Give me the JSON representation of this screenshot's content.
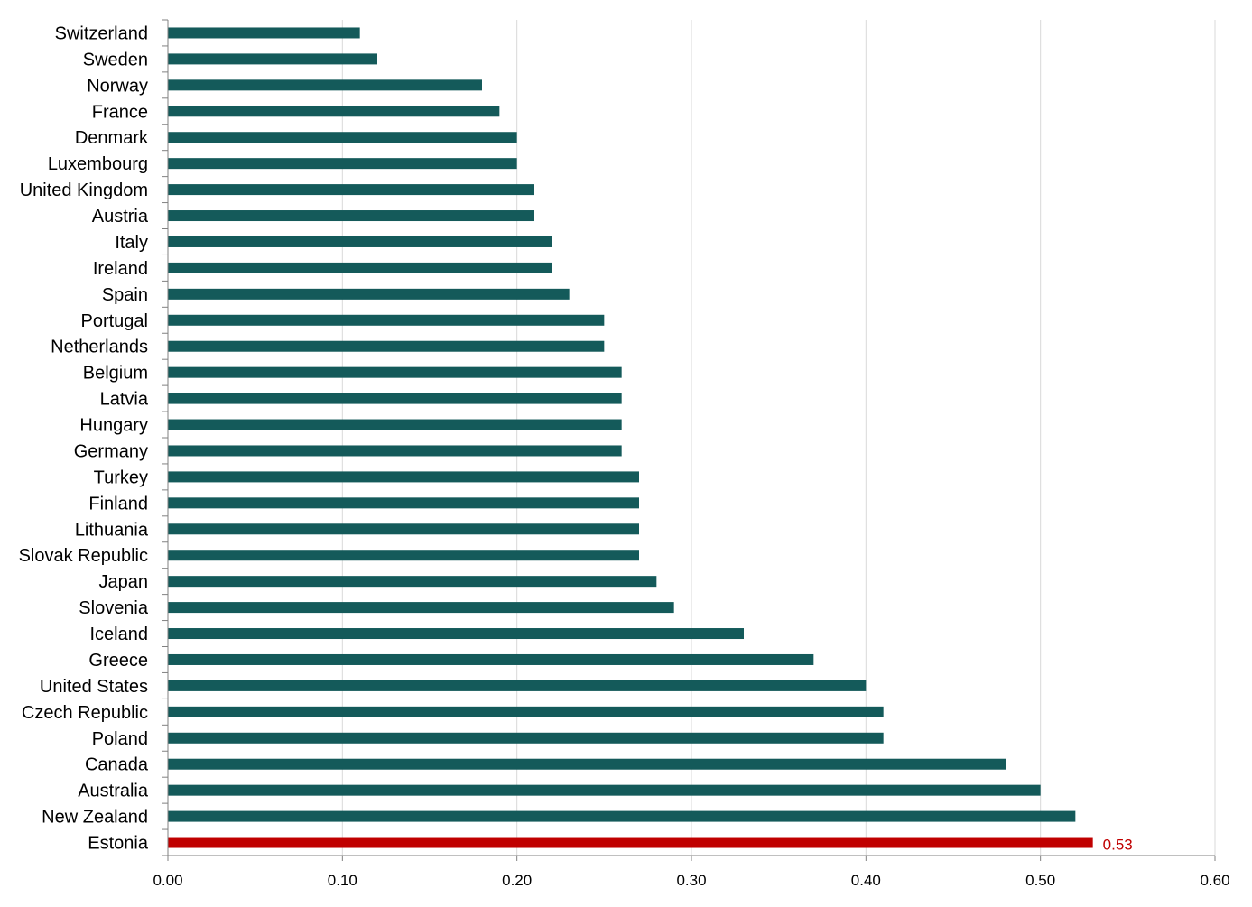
{
  "chart_data": {
    "type": "bar",
    "orientation": "horizontal",
    "title": "",
    "xlabel": "",
    "ylabel": "",
    "xlim": [
      0,
      0.6
    ],
    "ticks": [
      "0.00",
      "0.10",
      "0.20",
      "0.30",
      "0.40",
      "0.50",
      "0.60"
    ],
    "tick_values": [
      0,
      0.1,
      0.2,
      0.3,
      0.4,
      0.5,
      0.6
    ],
    "grid": "vertical",
    "legend": "none",
    "colors": {
      "default": "#145A5A",
      "highlight": "#C00000",
      "grid": "#D9D9D9",
      "axis": "#808080"
    },
    "categories": [
      "Switzerland",
      "Sweden",
      "Norway",
      "France",
      "Denmark",
      "Luxembourg",
      "United Kingdom",
      "Austria",
      "Italy",
      "Ireland",
      "Spain",
      "Portugal",
      "Netherlands",
      "Belgium",
      "Latvia",
      "Hungary",
      "Germany",
      "Turkey",
      "Finland",
      "Lithuania",
      "Slovak Republic",
      "Japan",
      "Slovenia",
      "Iceland",
      "Greece",
      "United States",
      "Czech Republic",
      "Poland",
      "Canada",
      "Australia",
      "New Zealand",
      "Estonia"
    ],
    "values": [
      0.11,
      0.12,
      0.18,
      0.19,
      0.2,
      0.2,
      0.21,
      0.21,
      0.22,
      0.22,
      0.23,
      0.25,
      0.25,
      0.26,
      0.26,
      0.26,
      0.26,
      0.27,
      0.27,
      0.27,
      0.27,
      0.28,
      0.29,
      0.33,
      0.37,
      0.4,
      0.41,
      0.41,
      0.48,
      0.5,
      0.52,
      0.53
    ],
    "highlight": {
      "category": "Estonia",
      "label": "0.53"
    }
  }
}
